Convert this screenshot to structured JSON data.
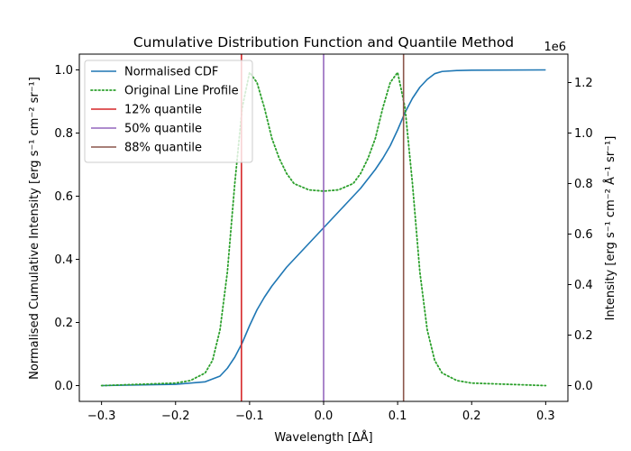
{
  "chart_data": {
    "type": "line",
    "title": "Cumulative Distribution Function and Quantile Method",
    "xlabel": "Wavelength [ΔÅ]",
    "ylabel_left": "Normalised Cumulative Intensity [erg s⁻¹ cm⁻² sr⁻¹]",
    "ylabel_right": "Intensity [erg s⁻¹ cm⁻² Å⁻¹ sr⁻¹]",
    "right_axis_offset": "1e6",
    "xlim": [
      -0.33,
      0.33
    ],
    "ylim_left": [
      -0.05,
      1.05
    ],
    "ylim_right": [
      -0.0625,
      1.3125
    ],
    "x_ticks": [
      -0.3,
      -0.2,
      -0.1,
      0.0,
      0.1,
      0.2,
      0.3
    ],
    "x_tick_labels": [
      "−0.3",
      "−0.2",
      "−0.1",
      "0.0",
      "0.1",
      "0.2",
      "0.3"
    ],
    "y_left_ticks": [
      0.0,
      0.2,
      0.4,
      0.6,
      0.8,
      1.0
    ],
    "y_left_tick_labels": [
      "0.0",
      "0.2",
      "0.4",
      "0.6",
      "0.8",
      "1.0"
    ],
    "y_right_ticks": [
      0.0,
      0.2,
      0.4,
      0.6,
      0.8,
      1.0,
      1.2
    ],
    "y_right_tick_labels": [
      "0.0",
      "0.2",
      "0.4",
      "0.6",
      "0.8",
      "1.0",
      "1.2"
    ],
    "grid": false,
    "legend_position": "top-left",
    "series": [
      {
        "name": "Normalised CDF",
        "axis": "left",
        "style": "solid",
        "color": "#1f77b4",
        "x": [
          -0.3,
          -0.2,
          -0.16,
          -0.14,
          -0.13,
          -0.12,
          -0.11,
          -0.1,
          -0.09,
          -0.08,
          -0.07,
          -0.06,
          -0.05,
          -0.04,
          -0.03,
          -0.02,
          -0.01,
          0.0,
          0.01,
          0.02,
          0.03,
          0.04,
          0.05,
          0.06,
          0.07,
          0.08,
          0.09,
          0.1,
          0.11,
          0.12,
          0.13,
          0.14,
          0.15,
          0.16,
          0.18,
          0.2,
          0.3
        ],
        "y": [
          0.0,
          0.004,
          0.012,
          0.03,
          0.055,
          0.09,
          0.135,
          0.19,
          0.24,
          0.28,
          0.315,
          0.345,
          0.375,
          0.4,
          0.425,
          0.45,
          0.475,
          0.5,
          0.525,
          0.55,
          0.575,
          0.6,
          0.625,
          0.655,
          0.685,
          0.72,
          0.76,
          0.81,
          0.865,
          0.91,
          0.945,
          0.97,
          0.988,
          0.995,
          0.998,
          0.999,
          1.0
        ]
      },
      {
        "name": "Original Line Profile",
        "axis": "right",
        "style": "dotted",
        "color": "#2ca02c",
        "x": [
          -0.3,
          -0.2,
          -0.18,
          -0.16,
          -0.15,
          -0.14,
          -0.13,
          -0.12,
          -0.11,
          -0.1,
          -0.09,
          -0.08,
          -0.07,
          -0.06,
          -0.05,
          -0.04,
          -0.02,
          0.0,
          0.02,
          0.04,
          0.05,
          0.06,
          0.07,
          0.08,
          0.09,
          0.1,
          0.11,
          0.12,
          0.13,
          0.14,
          0.15,
          0.16,
          0.18,
          0.2,
          0.3
        ],
        "y": [
          0.0,
          0.01,
          0.02,
          0.05,
          0.1,
          0.22,
          0.45,
          0.8,
          1.1,
          1.24,
          1.2,
          1.1,
          0.98,
          0.9,
          0.84,
          0.8,
          0.775,
          0.77,
          0.775,
          0.8,
          0.84,
          0.9,
          0.98,
          1.1,
          1.2,
          1.24,
          1.1,
          0.8,
          0.45,
          0.22,
          0.1,
          0.05,
          0.02,
          0.01,
          0.0
        ]
      }
    ],
    "vlines": [
      {
        "name": "12% quantile",
        "x": -0.111,
        "color": "#d62728"
      },
      {
        "name": "50% quantile",
        "x": 0.0,
        "color": "#9467bd"
      },
      {
        "name": "88% quantile",
        "x": 0.108,
        "color": "#8c564b"
      }
    ]
  }
}
